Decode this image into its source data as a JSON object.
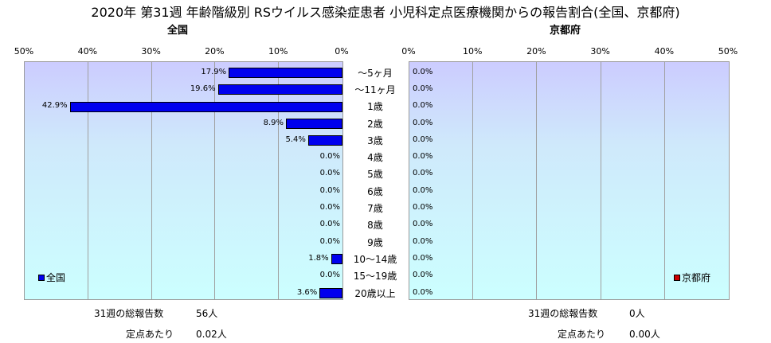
{
  "title": "2020年 第31週 年齢階級別 RSウイルス感染症患者 小児科定点医療機関からの報告割合(全国、京都府)",
  "colors": {
    "national": "#0000ee",
    "kyoto": "#cc0000",
    "grid": "#a0a0a0"
  },
  "chart_data": [
    {
      "type": "bar",
      "orientation": "horizontal",
      "panel_title": "全国",
      "legend": "全国",
      "xlim": [
        0,
        50
      ],
      "reversed_axis": true,
      "ticks": [
        "50%",
        "40%",
        "30%",
        "20%",
        "10%",
        "0%"
      ],
      "categories": [
        "～5ヶ月",
        "～11ヶ月",
        "1歳",
        "2歳",
        "3歳",
        "4歳",
        "5歳",
        "6歳",
        "7歳",
        "8歳",
        "9歳",
        "10～14歳",
        "15～19歳",
        "20歳以上"
      ],
      "series": [
        {
          "name": "全国",
          "values": [
            17.9,
            19.6,
            42.9,
            8.9,
            5.4,
            0.0,
            0.0,
            0.0,
            0.0,
            0.0,
            0.0,
            1.8,
            0.0,
            3.6
          ]
        }
      ],
      "data_labels": [
        "17.9%",
        "19.6%",
        "42.9%",
        "8.9%",
        "5.4%",
        "0.0%",
        "0.0%",
        "0.0%",
        "0.0%",
        "0.0%",
        "0.0%",
        "1.8%",
        "0.0%",
        "3.6%"
      ]
    },
    {
      "type": "bar",
      "orientation": "horizontal",
      "panel_title": "京都府",
      "legend": "京都府",
      "xlim": [
        0,
        50
      ],
      "reversed_axis": false,
      "ticks": [
        "0%",
        "10%",
        "20%",
        "30%",
        "40%",
        "50%"
      ],
      "categories": [
        "～5ヶ月",
        "～11ヶ月",
        "1歳",
        "2歳",
        "3歳",
        "4歳",
        "5歳",
        "6歳",
        "7歳",
        "8歳",
        "9歳",
        "10～14歳",
        "15～19歳",
        "20歳以上"
      ],
      "series": [
        {
          "name": "京都府",
          "values": [
            0.0,
            0.0,
            0.0,
            0.0,
            0.0,
            0.0,
            0.0,
            0.0,
            0.0,
            0.0,
            0.0,
            0.0,
            0.0,
            0.0
          ]
        }
      ],
      "data_labels": [
        "0.0%",
        "0.0%",
        "0.0%",
        "0.0%",
        "0.0%",
        "0.0%",
        "0.0%",
        "0.0%",
        "0.0%",
        "0.0%",
        "0.0%",
        "0.0%",
        "0.0%",
        "0.0%"
      ]
    }
  ],
  "stats": {
    "national": {
      "total_label": "31週の総報告数",
      "total_value": "56人",
      "per_label": "定点あたり",
      "per_value": "0.02人"
    },
    "kyoto": {
      "total_label": "31週の総報告数",
      "total_value": "0人",
      "per_label": "定点あたり",
      "per_value": "0.00人"
    }
  }
}
